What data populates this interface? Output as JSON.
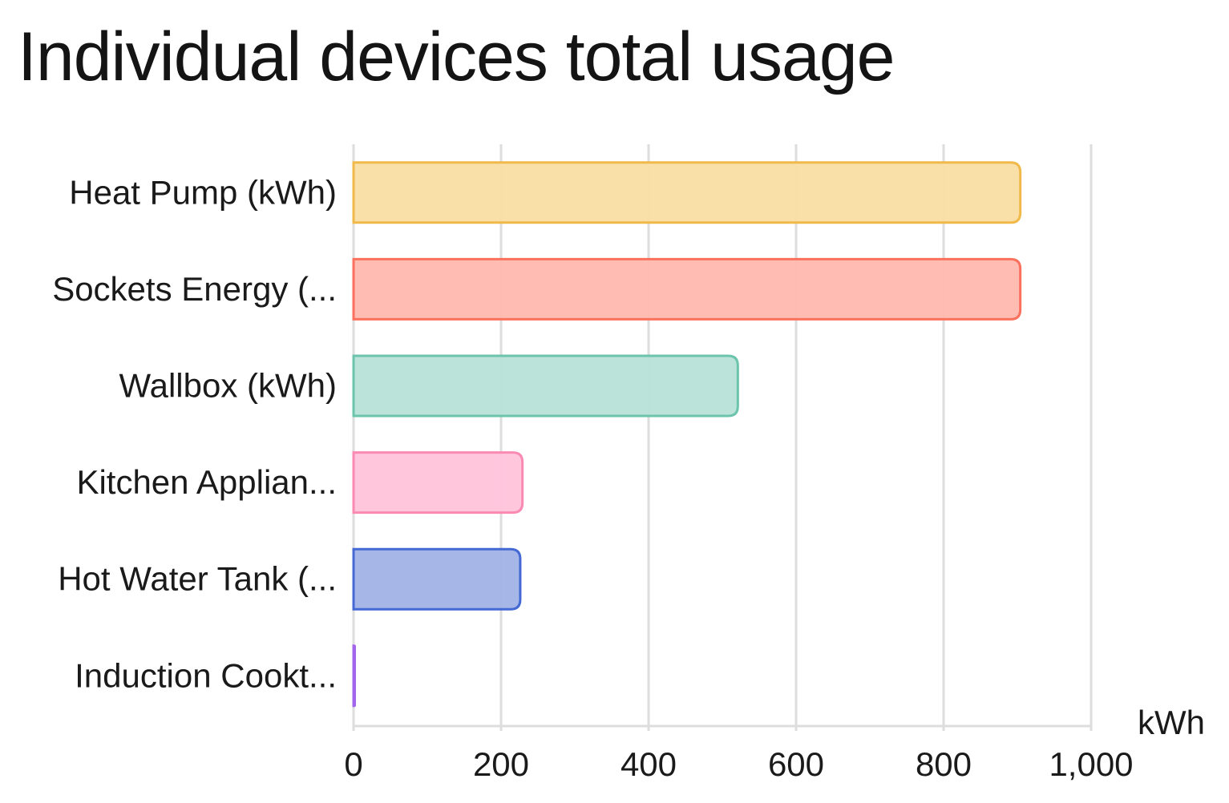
{
  "chart_data": {
    "type": "bar",
    "orientation": "horizontal",
    "title": "Individual devices total usage",
    "xlabel": "kWh",
    "ylabel": "",
    "xlim": [
      0,
      1000
    ],
    "xticks": [
      0,
      200,
      400,
      600,
      800,
      1000
    ],
    "xtick_labels": [
      "0",
      "200",
      "400",
      "600",
      "800",
      "1,000"
    ],
    "grid": true,
    "categories": [
      "Heat Pump (kWh)",
      "Sockets Energy (...",
      "Wallbox (kWh)",
      "Kitchen Applian...",
      "Hot Water Tank (...",
      "Induction Cookt..."
    ],
    "values": [
      904,
      904,
      521,
      229,
      226,
      1
    ],
    "colors": [
      {
        "fill": "#f9dda3",
        "stroke": "#f0b94a"
      },
      {
        "fill": "#ffb8ae",
        "stroke": "#fb715d"
      },
      {
        "fill": "#b7e2d8",
        "stroke": "#6cc4ad"
      },
      {
        "fill": "#ffc3da",
        "stroke": "#fb8ab3"
      },
      {
        "fill": "#a1b3e6",
        "stroke": "#4468d4"
      },
      {
        "fill": "#d2b3f5",
        "stroke": "#a265ec"
      }
    ]
  }
}
